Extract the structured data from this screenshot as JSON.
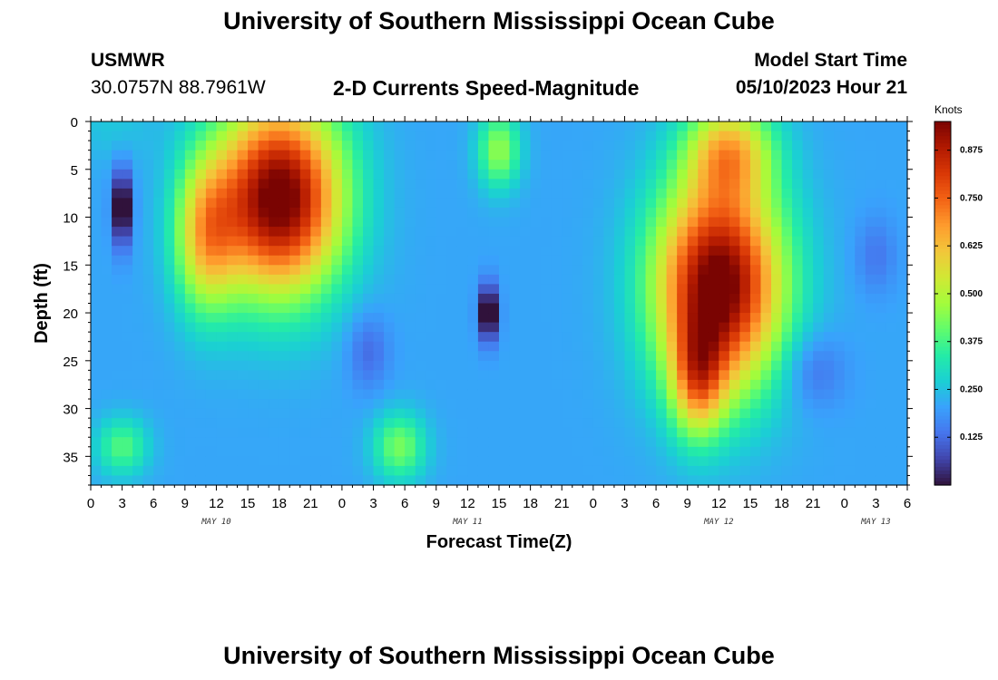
{
  "header": {
    "title": "University of Southern Mississippi Ocean Cube",
    "station": "USMWR",
    "coords": "30.0757N  88.7961W",
    "subtitle": "2-D Currents Speed-Magnitude",
    "start_label": "Model Start Time",
    "start_value": "05/10/2023 Hour 21"
  },
  "footer": {
    "title": "University of Southern Mississippi Ocean Cube"
  },
  "chart_data": {
    "type": "heatmap",
    "xlabel": "Forecast Time(Z)",
    "ylabel": "Depth (ft)",
    "x_tick_labels": [
      "0",
      "3",
      "6",
      "9",
      "12",
      "15",
      "18",
      "21",
      "0",
      "3",
      "6",
      "9",
      "12",
      "15",
      "18",
      "21",
      "0",
      "3",
      "6",
      "9",
      "12",
      "15",
      "18",
      "21",
      "0",
      "3",
      "6"
    ],
    "day_labels": [
      {
        "label": "MAY 10",
        "hour": 12
      },
      {
        "label": "MAY 11",
        "hour": 36
      },
      {
        "label": "MAY 12",
        "hour": 60
      },
      {
        "label": "MAY 13",
        "hour": 75
      }
    ],
    "xlim": [
      0,
      78
    ],
    "y_ticks": [
      0,
      5,
      10,
      15,
      20,
      25,
      30,
      35
    ],
    "ylim": [
      0,
      38
    ],
    "y_inverted": true,
    "colorbar": {
      "label": "Knots",
      "ticks": [
        0.125,
        0.25,
        0.375,
        0.5,
        0.625,
        0.75,
        0.875
      ],
      "tick_labels": [
        "0.125",
        "0.250",
        "0.375",
        "0.500",
        "0.625",
        "0.750",
        "0.875"
      ],
      "range": [
        0.0,
        0.95
      ],
      "colormap": [
        "#30123b",
        "#4145ab",
        "#4675ed",
        "#39a2fc",
        "#1bcfd4",
        "#24eca6",
        "#61fc6c",
        "#a4fc3b",
        "#d1e834",
        "#f3c63a",
        "#fe9b2d",
        "#f36315",
        "#d93806",
        "#b11901",
        "#7a0402"
      ]
    },
    "features": [
      {
        "t": 18,
        "d": 8,
        "st": 6,
        "sd": 10,
        "amp": 0.78
      },
      {
        "t": 11,
        "d": 12,
        "st": 3,
        "sd": 8,
        "amp": 0.35
      },
      {
        "t": 60,
        "d": 17,
        "st": 6,
        "sd": 11,
        "amp": 0.78
      },
      {
        "t": 61,
        "d": 3,
        "st": 4,
        "sd": 5,
        "amp": 0.35
      },
      {
        "t": 58,
        "d": 27,
        "st": 2.5,
        "sd": 6,
        "amp": 0.35
      },
      {
        "t": 3,
        "d": 9,
        "st": 0.9,
        "sd": 4,
        "amp": -0.3
      },
      {
        "t": 38,
        "d": 20,
        "st": 0.9,
        "sd": 3,
        "amp": -0.3
      },
      {
        "t": 26.5,
        "d": 24,
        "st": 2,
        "sd": 4,
        "amp": -0.09
      },
      {
        "t": 69,
        "d": 26,
        "st": 3,
        "sd": 4,
        "amp": -0.09
      },
      {
        "t": 75,
        "d": 14,
        "st": 2,
        "sd": 4,
        "amp": -0.07
      },
      {
        "t": 39,
        "d": 3,
        "st": 2,
        "sd": 4,
        "amp": 0.25
      },
      {
        "t": 3,
        "d": 34,
        "st": 2.5,
        "sd": 3,
        "amp": 0.18
      },
      {
        "t": 29.5,
        "d": 34,
        "st": 2.5,
        "sd": 3.5,
        "amp": 0.22
      },
      {
        "t": 2,
        "d": 0,
        "st": 4,
        "sd": 4,
        "amp": 0.05
      }
    ],
    "base_value": 0.21
  }
}
